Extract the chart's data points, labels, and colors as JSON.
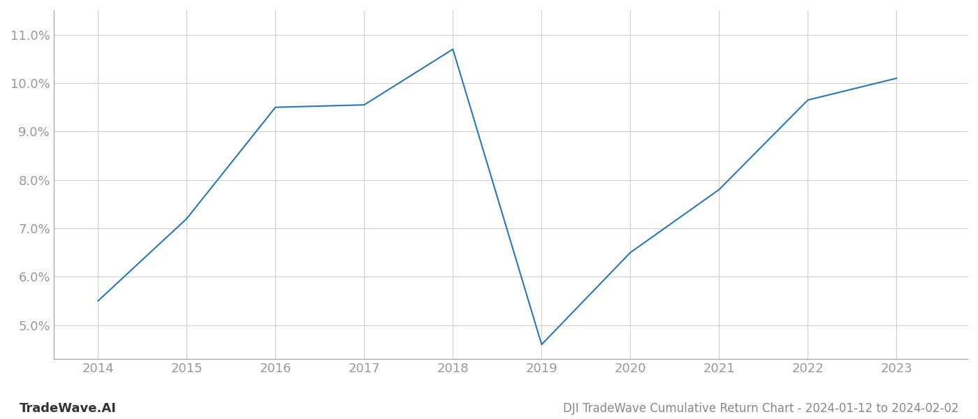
{
  "x": [
    2014,
    2015,
    2016,
    2017,
    2018,
    2019,
    2020,
    2021,
    2022,
    2023
  ],
  "y": [
    5.5,
    7.2,
    9.5,
    9.55,
    10.7,
    4.6,
    6.5,
    7.8,
    9.65,
    10.1
  ],
  "line_color": "#2878b8",
  "line_width": 1.5,
  "title": "DJI TradeWave Cumulative Return Chart - 2024-01-12 to 2024-02-02",
  "watermark": "TradeWave.AI",
  "xlim": [
    2013.5,
    2023.8
  ],
  "ylim": [
    4.3,
    11.5
  ],
  "yticks": [
    5.0,
    6.0,
    7.0,
    8.0,
    9.0,
    10.0,
    11.0
  ],
  "xticks": [
    2014,
    2015,
    2016,
    2017,
    2018,
    2019,
    2020,
    2021,
    2022,
    2023
  ],
  "background_color": "#ffffff",
  "grid_color": "#d0d0d0",
  "title_fontsize": 12,
  "tick_fontsize": 13,
  "watermark_fontsize": 13,
  "tick_color": "#999999"
}
